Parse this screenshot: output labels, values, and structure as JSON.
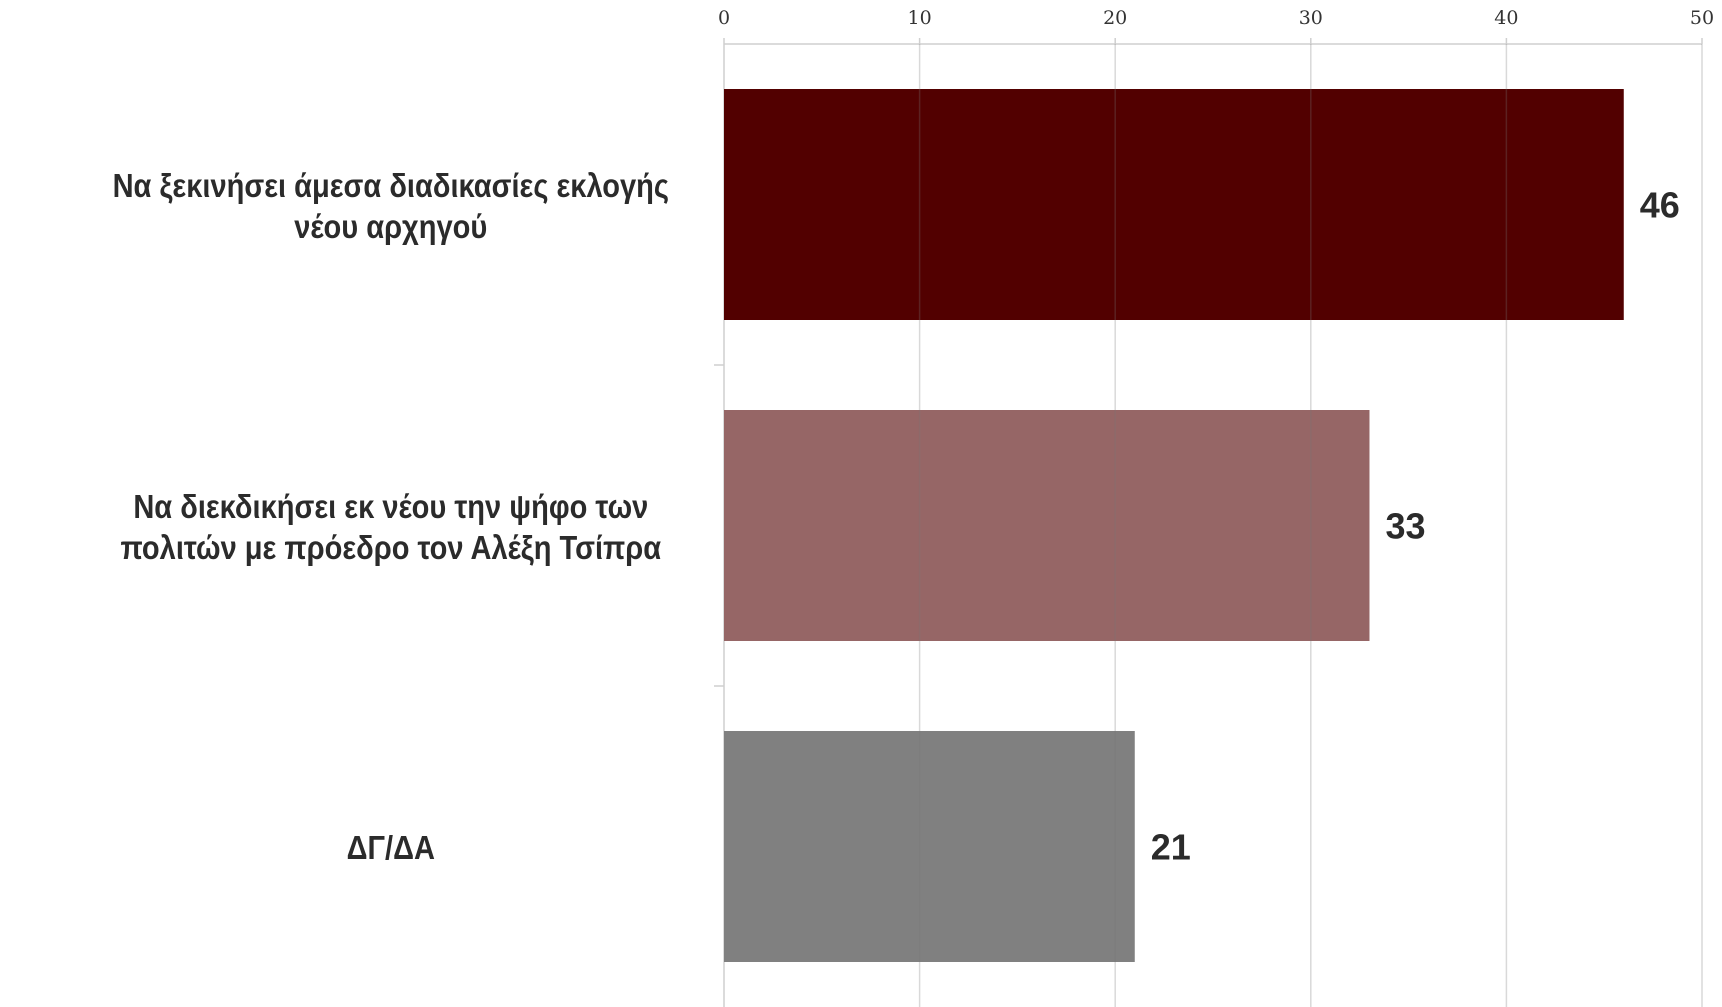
{
  "chart_data": {
    "type": "bar",
    "orientation": "horizontal",
    "categories": [
      "Να ξεκινήσει άμεσα διαδικασίες εκλογής νέου αρχηγού",
      "Να διεκδικήσει εκ νέου την ψήφο των πολιτών με πρόεδρο τον Αλέξη Τσίπρα",
      "ΔΓ/ΔΑ"
    ],
    "values": [
      46,
      33,
      21
    ],
    "data_labels": [
      "46",
      "33",
      "21"
    ],
    "colors": [
      "#520000",
      "#966666",
      "#808080"
    ],
    "xlim": [
      0,
      50
    ],
    "x_ticks": [
      0,
      10,
      20,
      30,
      40,
      50
    ],
    "x_tick_labels": [
      "0",
      "10",
      "20",
      "30",
      "40",
      "50"
    ],
    "x_axis_position": "top",
    "grid": true,
    "title": "",
    "xlabel": "",
    "ylabel": ""
  }
}
